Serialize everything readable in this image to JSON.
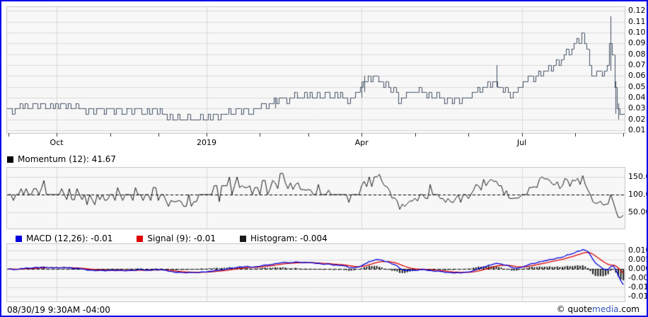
{
  "colors": {
    "frame_border": "#0000ee",
    "panel_bg": "#f7f7f7",
    "panel_border": "#c9c9c9",
    "grid": "#d9d9d9",
    "price": "#3e4d60",
    "momentum": "#1a1a1a",
    "macd": "#0000dd",
    "signal": "#dd0000",
    "histogram": "#1a1a1a",
    "baseline": "#000000",
    "brand_blue": "#3355bb"
  },
  "footer": {
    "timestamp": "08/30/19 9:30AM -04:00",
    "copyright_prefix": "© quote",
    "copyright_brand": "media",
    "copyright_suffix": ".com"
  },
  "chart_data": [
    {
      "type": "ohlc",
      "panel": "price",
      "unit": 0.005,
      "ylim": [
        0.0075,
        0.1235
      ],
      "yticks": [
        0.12,
        0.11,
        0.1,
        0.09,
        0.08,
        0.07,
        0.06,
        0.05,
        0.04,
        0.03,
        0.02,
        0.01
      ],
      "x_tick_labels": [
        "Oct",
        "2019",
        "Apr",
        "Jul"
      ],
      "x_tick_index": [
        19,
        78,
        139,
        202
      ],
      "month_tick_index": [
        0,
        19,
        40,
        59,
        78,
        99,
        118,
        139,
        160,
        181,
        202,
        223,
        242
      ],
      "close_units": [
        6,
        6,
        5,
        6,
        6,
        7,
        6,
        7,
        6,
        6,
        7,
        7,
        6,
        7,
        7,
        6,
        6,
        7,
        6,
        7,
        6,
        7,
        7,
        6,
        7,
        6,
        6,
        7,
        6,
        6,
        6,
        5,
        6,
        6,
        5,
        6,
        6,
        6,
        5,
        6,
        6,
        6,
        5,
        6,
        6,
        5,
        5,
        6,
        6,
        5,
        6,
        6,
        6,
        5,
        5,
        6,
        5,
        6,
        6,
        5,
        6,
        5,
        5,
        4,
        5,
        4,
        4,
        5,
        4,
        4,
        4,
        5,
        4,
        4,
        4,
        4,
        5,
        4,
        4,
        5,
        4,
        5,
        5,
        4,
        5,
        5,
        5,
        6,
        5,
        5,
        6,
        6,
        5,
        6,
        6,
        5,
        5,
        6,
        6,
        6,
        7,
        7,
        6,
        7,
        7,
        8,
        7,
        8,
        8,
        8,
        7,
        8,
        8,
        9,
        8,
        8,
        8,
        9,
        8,
        9,
        8,
        8,
        9,
        8,
        8,
        9,
        9,
        8,
        8,
        9,
        8,
        9,
        8,
        8,
        7,
        8,
        8,
        9,
        9,
        10,
        11,
        11,
        12,
        11,
        12,
        12,
        11,
        11,
        10,
        11,
        10,
        9,
        10,
        9,
        7,
        8,
        8,
        9,
        9,
        9,
        9,
        9,
        10,
        9,
        9,
        8,
        9,
        8,
        8,
        9,
        8,
        8,
        7,
        8,
        8,
        7,
        8,
        8,
        7,
        8,
        8,
        8,
        8,
        9,
        9,
        10,
        9,
        10,
        10,
        11,
        10,
        11,
        11,
        10,
        10,
        9,
        10,
        9,
        8,
        9,
        9,
        10,
        10,
        11,
        11,
        12,
        12,
        11,
        12,
        13,
        12,
        13,
        13,
        14,
        13,
        14,
        15,
        14,
        15,
        16,
        17,
        16,
        17,
        18,
        19,
        18,
        20,
        18,
        17,
        14,
        12,
        12,
        13,
        13,
        12,
        13,
        14,
        18,
        16,
        10,
        6,
        5,
        5
      ],
      "wicks": {
        "105": [
          8,
          6
        ],
        "139": [
          11,
          8
        ],
        "140": [
          12,
          9
        ],
        "192": [
          14,
          10
        ],
        "237": [
          23,
          13
        ],
        "239": [
          11,
          5
        ],
        "240": [
          7,
          4
        ]
      }
    },
    {
      "type": "line",
      "panel": "momentum",
      "legend": "Momentum (12): 41.67",
      "period": 12,
      "current": 41.67,
      "ylim": [
        4,
        176
      ],
      "yticks": [
        150,
        100,
        50
      ],
      "baseline": 100
    },
    {
      "type": "macd",
      "panel": "macd",
      "legend_macd": "MACD (12,26): -0.01",
      "legend_signal": "Signal (9): -0.01",
      "legend_histogram": "Histogram: -0.004",
      "fast": 12,
      "slow": 26,
      "signal_period": 9,
      "current": {
        "macd": -0.01,
        "signal": -0.01,
        "histogram": -0.004
      },
      "ylim": [
        -0.0177,
        0.0135
      ],
      "yticks": [
        0.01,
        0.005,
        0.0,
        -0.005,
        -0.01,
        -0.015
      ],
      "baseline": 0
    }
  ]
}
